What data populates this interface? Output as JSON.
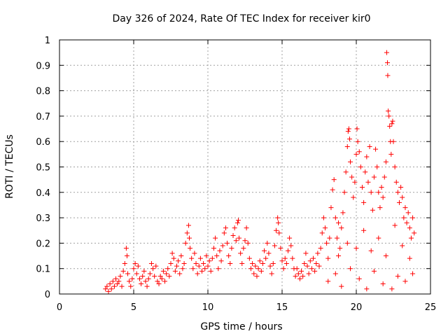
{
  "chart_data": {
    "type": "scatter",
    "title": "Day 326 of 2024, Rate Of TEC Index for receiver kir0",
    "xlabel": "GPS time / hours",
    "ylabel": "ROTI / TECUs",
    "xlim": [
      0,
      25
    ],
    "ylim": [
      0,
      1
    ],
    "x_ticks": [
      0,
      5,
      10,
      15,
      20,
      25
    ],
    "x_tick_labels": [
      "0",
      "5",
      "10",
      "15",
      "20",
      "25"
    ],
    "y_ticks": [
      0,
      0.1,
      0.2,
      0.3,
      0.4,
      0.5,
      0.6,
      0.7,
      0.8,
      0.9,
      1
    ],
    "y_tick_labels": [
      "0",
      "0.1",
      "0.2",
      "0.3",
      "0.4",
      "0.5",
      "0.6",
      "0.7",
      "0.8",
      "0.9",
      "1"
    ],
    "grid": true,
    "marker": "+",
    "color": "#ff0000",
    "series": [
      {
        "name": "ROTI",
        "points": [
          [
            3.1,
            0.02
          ],
          [
            3.2,
            0.03
          ],
          [
            3.3,
            0.01
          ],
          [
            3.4,
            0.04
          ],
          [
            3.5,
            0.02
          ],
          [
            3.6,
            0.05
          ],
          [
            3.7,
            0.03
          ],
          [
            3.8,
            0.06
          ],
          [
            3.9,
            0.04
          ],
          [
            4.0,
            0.05
          ],
          [
            4.1,
            0.07
          ],
          [
            4.2,
            0.03
          ],
          [
            4.3,
            0.09
          ],
          [
            4.4,
            0.12
          ],
          [
            4.5,
            0.18
          ],
          [
            4.55,
            0.15
          ],
          [
            4.6,
            0.08
          ],
          [
            4.7,
            0.05
          ],
          [
            4.8,
            0.03
          ],
          [
            4.9,
            0.06
          ],
          [
            5.0,
            0.1
          ],
          [
            5.1,
            0.12
          ],
          [
            5.2,
            0.08
          ],
          [
            5.3,
            0.11
          ],
          [
            5.4,
            0.06
          ],
          [
            5.5,
            0.04
          ],
          [
            5.6,
            0.07
          ],
          [
            5.7,
            0.09
          ],
          [
            5.8,
            0.05
          ],
          [
            5.9,
            0.03
          ],
          [
            6.0,
            0.06
          ],
          [
            6.1,
            0.08
          ],
          [
            6.2,
            0.12
          ],
          [
            6.3,
            0.1
          ],
          [
            6.4,
            0.07
          ],
          [
            6.5,
            0.11
          ],
          [
            6.6,
            0.05
          ],
          [
            6.7,
            0.04
          ],
          [
            6.8,
            0.07
          ],
          [
            6.9,
            0.06
          ],
          [
            7.0,
            0.09
          ],
          [
            7.1,
            0.05
          ],
          [
            7.2,
            0.08
          ],
          [
            7.3,
            0.1
          ],
          [
            7.4,
            0.07
          ],
          [
            7.5,
            0.12
          ],
          [
            7.6,
            0.16
          ],
          [
            7.7,
            0.14
          ],
          [
            7.8,
            0.09
          ],
          [
            7.9,
            0.11
          ],
          [
            8.0,
            0.13
          ],
          [
            8.1,
            0.08
          ],
          [
            8.2,
            0.15
          ],
          [
            8.3,
            0.1
          ],
          [
            8.4,
            0.12
          ],
          [
            8.5,
            0.2
          ],
          [
            8.6,
            0.24
          ],
          [
            8.7,
            0.27
          ],
          [
            8.75,
            0.22
          ],
          [
            8.8,
            0.18
          ],
          [
            8.9,
            0.14
          ],
          [
            9.0,
            0.1
          ],
          [
            9.1,
            0.16
          ],
          [
            9.2,
            0.12
          ],
          [
            9.3,
            0.08
          ],
          [
            9.4,
            0.11
          ],
          [
            9.5,
            0.14
          ],
          [
            9.6,
            0.09
          ],
          [
            9.7,
            0.12
          ],
          [
            9.8,
            0.1
          ],
          [
            9.9,
            0.15
          ],
          [
            10.0,
            0.11
          ],
          [
            10.1,
            0.13
          ],
          [
            10.2,
            0.09
          ],
          [
            10.3,
            0.14
          ],
          [
            10.4,
            0.18
          ],
          [
            10.5,
            0.22
          ],
          [
            10.6,
            0.15
          ],
          [
            10.7,
            0.1
          ],
          [
            10.8,
            0.17
          ],
          [
            10.9,
            0.13
          ],
          [
            11.0,
            0.19
          ],
          [
            11.1,
            0.24
          ],
          [
            11.2,
            0.26
          ],
          [
            11.3,
            0.2
          ],
          [
            11.4,
            0.15
          ],
          [
            11.5,
            0.12
          ],
          [
            11.6,
            0.18
          ],
          [
            11.7,
            0.23
          ],
          [
            11.8,
            0.26
          ],
          [
            11.9,
            0.21
          ],
          [
            12.0,
            0.28
          ],
          [
            12.05,
            0.29
          ],
          [
            12.1,
            0.22
          ],
          [
            12.2,
            0.16
          ],
          [
            12.3,
            0.12
          ],
          [
            12.4,
            0.18
          ],
          [
            12.5,
            0.21
          ],
          [
            12.6,
            0.26
          ],
          [
            12.7,
            0.2
          ],
          [
            12.8,
            0.14
          ],
          [
            12.9,
            0.1
          ],
          [
            13.0,
            0.12
          ],
          [
            13.1,
            0.08
          ],
          [
            13.2,
            0.11
          ],
          [
            13.3,
            0.07
          ],
          [
            13.4,
            0.1
          ],
          [
            13.5,
            0.13
          ],
          [
            13.6,
            0.09
          ],
          [
            13.7,
            0.12
          ],
          [
            13.8,
            0.17
          ],
          [
            13.9,
            0.14
          ],
          [
            14.0,
            0.2
          ],
          [
            14.1,
            0.16
          ],
          [
            14.2,
            0.11
          ],
          [
            14.3,
            0.08
          ],
          [
            14.4,
            0.12
          ],
          [
            14.5,
            0.19
          ],
          [
            14.6,
            0.25
          ],
          [
            14.7,
            0.3
          ],
          [
            14.75,
            0.28
          ],
          [
            14.8,
            0.24
          ],
          [
            14.9,
            0.18
          ],
          [
            15.0,
            0.13
          ],
          [
            15.1,
            0.1
          ],
          [
            15.2,
            0.14
          ],
          [
            15.3,
            0.12
          ],
          [
            15.4,
            0.17
          ],
          [
            15.5,
            0.22
          ],
          [
            15.6,
            0.19
          ],
          [
            15.7,
            0.14
          ],
          [
            15.8,
            0.1
          ],
          [
            15.9,
            0.07
          ],
          [
            16.0,
            0.1
          ],
          [
            16.1,
            0.08
          ],
          [
            16.2,
            0.06
          ],
          [
            16.3,
            0.09
          ],
          [
            16.4,
            0.07
          ],
          [
            16.5,
            0.12
          ],
          [
            16.6,
            0.16
          ],
          [
            16.7,
            0.11
          ],
          [
            16.8,
            0.08
          ],
          [
            16.9,
            0.13
          ],
          [
            17.0,
            0.1
          ],
          [
            17.1,
            0.14
          ],
          [
            17.2,
            0.09
          ],
          [
            17.3,
            0.12
          ],
          [
            17.4,
            0.16
          ],
          [
            17.5,
            0.11
          ],
          [
            17.6,
            0.18
          ],
          [
            17.7,
            0.24
          ],
          [
            17.8,
            0.3
          ],
          [
            17.9,
            0.26
          ],
          [
            18.0,
            0.2
          ],
          [
            18.1,
            0.14
          ],
          [
            18.2,
            0.22
          ],
          [
            18.3,
            0.34
          ],
          [
            18.4,
            0.41
          ],
          [
            18.5,
            0.45
          ],
          [
            18.6,
            0.3
          ],
          [
            18.7,
            0.22
          ],
          [
            18.8,
            0.28
          ],
          [
            18.9,
            0.18
          ],
          [
            19.0,
            0.26
          ],
          [
            19.1,
            0.32
          ],
          [
            19.2,
            0.4
          ],
          [
            19.3,
            0.48
          ],
          [
            19.4,
            0.58
          ],
          [
            19.45,
            0.64
          ],
          [
            19.5,
            0.65
          ],
          [
            19.55,
            0.61
          ],
          [
            19.6,
            0.52
          ],
          [
            19.7,
            0.46
          ],
          [
            19.8,
            0.38
          ],
          [
            19.9,
            0.44
          ],
          [
            20.0,
            0.55
          ],
          [
            20.05,
            0.65
          ],
          [
            20.1,
            0.6
          ],
          [
            20.2,
            0.56
          ],
          [
            20.3,
            0.5
          ],
          [
            20.4,
            0.42
          ],
          [
            20.5,
            0.36
          ],
          [
            20.6,
            0.48
          ],
          [
            20.7,
            0.54
          ],
          [
            20.8,
            0.44
          ],
          [
            20.9,
            0.58
          ],
          [
            21.0,
            0.4
          ],
          [
            21.1,
            0.33
          ],
          [
            21.2,
            0.46
          ],
          [
            21.3,
            0.57
          ],
          [
            21.4,
            0.5
          ],
          [
            21.5,
            0.4
          ],
          [
            21.6,
            0.34
          ],
          [
            21.7,
            0.42
          ],
          [
            21.8,
            0.38
          ],
          [
            21.9,
            0.46
          ],
          [
            22.0,
            0.52
          ],
          [
            22.05,
            0.95
          ],
          [
            22.1,
            0.91
          ],
          [
            22.12,
            0.86
          ],
          [
            22.15,
            0.72
          ],
          [
            22.2,
            0.7
          ],
          [
            22.25,
            0.66
          ],
          [
            22.3,
            0.6
          ],
          [
            22.35,
            0.55
          ],
          [
            22.4,
            0.67
          ],
          [
            22.45,
            0.68
          ],
          [
            22.5,
            0.6
          ],
          [
            22.6,
            0.5
          ],
          [
            22.7,
            0.44
          ],
          [
            22.8,
            0.4
          ],
          [
            22.9,
            0.36
          ],
          [
            23.0,
            0.42
          ],
          [
            23.1,
            0.38
          ],
          [
            23.2,
            0.3
          ],
          [
            23.3,
            0.34
          ],
          [
            23.4,
            0.28
          ],
          [
            23.5,
            0.32
          ],
          [
            23.6,
            0.26
          ],
          [
            23.7,
            0.22
          ],
          [
            23.8,
            0.3
          ],
          [
            23.9,
            0.24
          ],
          [
            18.1,
            0.05
          ],
          [
            18.6,
            0.08
          ],
          [
            19.0,
            0.03
          ],
          [
            19.6,
            0.1
          ],
          [
            20.2,
            0.06
          ],
          [
            20.7,
            0.02
          ],
          [
            21.2,
            0.09
          ],
          [
            21.8,
            0.04
          ],
          [
            22.4,
            0.02
          ],
          [
            22.8,
            0.07
          ],
          [
            23.3,
            0.05
          ],
          [
            23.8,
            0.08
          ],
          [
            18.8,
            0.15
          ],
          [
            19.4,
            0.2
          ],
          [
            20.0,
            0.18
          ],
          [
            20.5,
            0.25
          ],
          [
            21.0,
            0.17
          ],
          [
            21.5,
            0.22
          ],
          [
            22.0,
            0.15
          ],
          [
            22.6,
            0.27
          ],
          [
            23.1,
            0.19
          ],
          [
            23.6,
            0.14
          ]
        ]
      }
    ]
  }
}
